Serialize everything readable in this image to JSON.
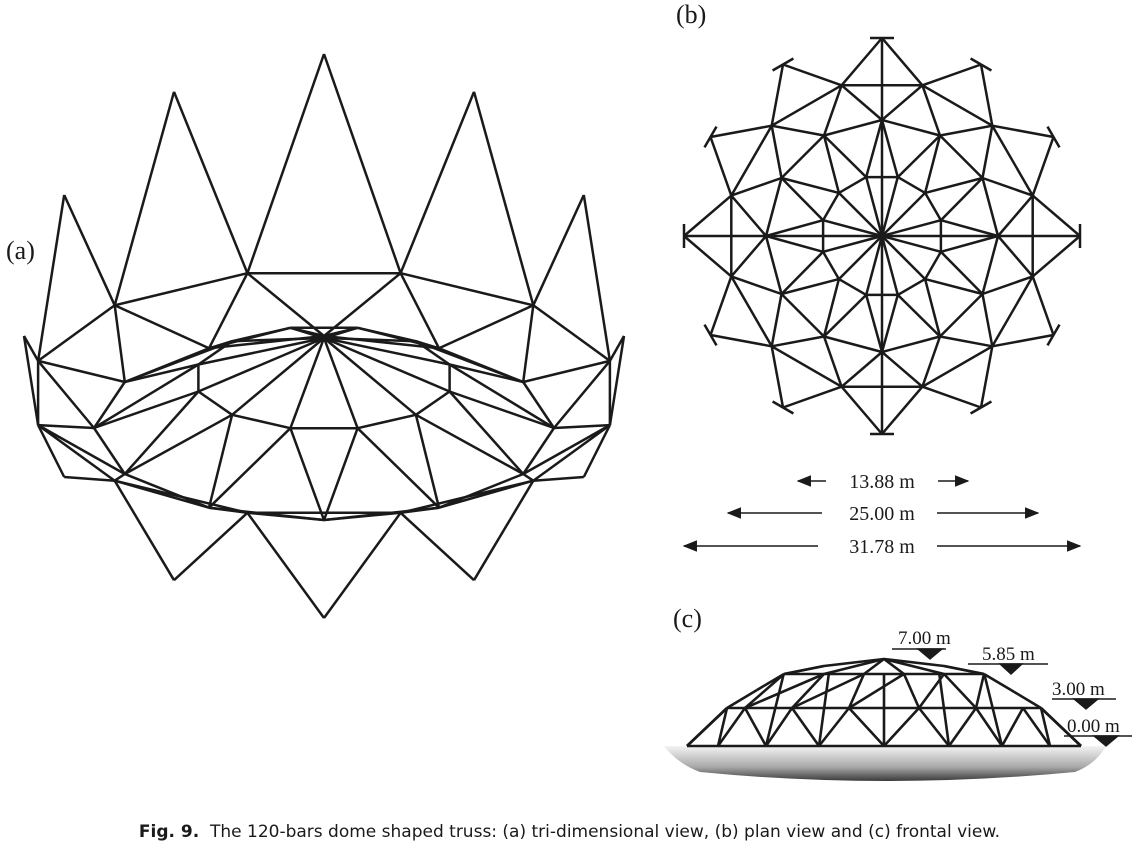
{
  "panels": {
    "a": {
      "label": "(a)"
    },
    "b": {
      "label": "(b)"
    },
    "c": {
      "label": "(c)"
    }
  },
  "dimensions": [
    {
      "label": "13.88 m"
    },
    {
      "label": "25.00 m"
    },
    {
      "label": "31.78 m"
    }
  ],
  "elevations": [
    {
      "label": "7.00 m"
    },
    {
      "label": "5.85 m"
    },
    {
      "label": "3.00 m"
    },
    {
      "label": "0.00 m"
    }
  ],
  "caption": {
    "figure_label": "Fig. 9.",
    "text": "The 120-bars dome shaped truss: (a) tri-dimensional view, (b) plan view and (c) frontal view."
  },
  "colors": {
    "stroke": "#1a1a1a",
    "background": "#ffffff"
  }
}
